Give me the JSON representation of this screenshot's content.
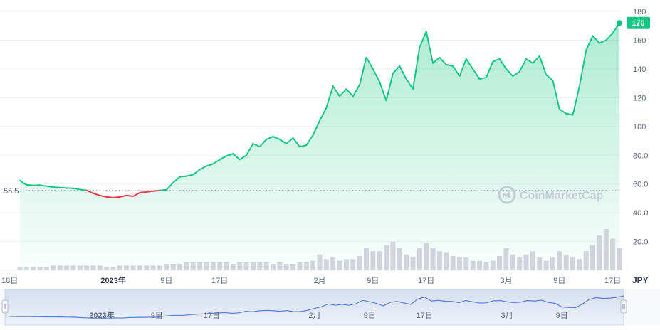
{
  "chart_data": {
    "type": "line",
    "currency": "JPY",
    "watermark": "CoinMarketCap",
    "baseline_label": "55.5",
    "baseline_value": 55.5,
    "current_price_label": "170",
    "current_price": 170,
    "y_ticks": [
      "20.0",
      "40.0",
      "60.0",
      "80.0",
      "100",
      "120",
      "140",
      "160",
      "180"
    ],
    "y_tick_values": [
      20,
      40,
      60,
      80,
      100,
      120,
      140,
      160,
      180
    ],
    "x_ticks": [
      {
        "label": "18日",
        "day": 0,
        "bold": false
      },
      {
        "label": "2023年",
        "day": 14,
        "bold": true
      },
      {
        "label": "9日",
        "day": 22,
        "bold": false
      },
      {
        "label": "17日",
        "day": 30,
        "bold": false
      },
      {
        "label": "2月",
        "day": 45,
        "bold": false
      },
      {
        "label": "9日",
        "day": 53,
        "bold": false
      },
      {
        "label": "17日",
        "day": 61,
        "bold": false
      },
      {
        "label": "3月",
        "day": 73,
        "bold": false
      },
      {
        "label": "9日",
        "day": 81,
        "bold": false
      },
      {
        "label": "17日",
        "day": 89,
        "bold": false
      }
    ],
    "navigator_ticks": [
      {
        "label": "2023年",
        "day": 14,
        "bold": true
      },
      {
        "label": "9日",
        "day": 22,
        "bold": false
      },
      {
        "label": "17日",
        "day": 30,
        "bold": false
      },
      {
        "label": "2月",
        "day": 45,
        "bold": false
      },
      {
        "label": "9日",
        "day": 53,
        "bold": false
      },
      {
        "label": "17日",
        "day": 61,
        "bold": false
      },
      {
        "label": "3月",
        "day": 73,
        "bold": false
      },
      {
        "label": "9日",
        "day": 81,
        "bold": false
      }
    ],
    "x_range_days": [
      0,
      90
    ],
    "y_range": [
      0,
      183
    ],
    "series": [
      {
        "values": [
          [
            0,
            62.5
          ],
          [
            0.5,
            60.5
          ],
          [
            1,
            59.5
          ],
          [
            2,
            59
          ],
          [
            3,
            59.2
          ],
          [
            4,
            58.5
          ],
          [
            5,
            57.8
          ],
          [
            6,
            57.5
          ],
          [
            7,
            57.2
          ],
          [
            8,
            57
          ],
          [
            9,
            56.2
          ],
          [
            10,
            55.5
          ],
          [
            11,
            53.5
          ],
          [
            12,
            52
          ],
          [
            13,
            51
          ],
          [
            14,
            50.5
          ],
          [
            15,
            51
          ],
          [
            16,
            52
          ],
          [
            17,
            51.5
          ],
          [
            18,
            54
          ],
          [
            19,
            54.5
          ],
          [
            20,
            55
          ],
          [
            21,
            55.5
          ],
          [
            22,
            56
          ],
          [
            23,
            61
          ],
          [
            24,
            65
          ],
          [
            25,
            65.5
          ],
          [
            26,
            66.5
          ],
          [
            27,
            70
          ],
          [
            28,
            72.5
          ],
          [
            29,
            74
          ],
          [
            30,
            77
          ],
          [
            31,
            79.5
          ],
          [
            32,
            81
          ],
          [
            33,
            77
          ],
          [
            34,
            80
          ],
          [
            35,
            88
          ],
          [
            36,
            86
          ],
          [
            37,
            91
          ],
          [
            38,
            93
          ],
          [
            39,
            91
          ],
          [
            40,
            88
          ],
          [
            41,
            92
          ],
          [
            42,
            86
          ],
          [
            43,
            87
          ],
          [
            44,
            94
          ],
          [
            45,
            104
          ],
          [
            46,
            113
          ],
          [
            47,
            128
          ],
          [
            48,
            121
          ],
          [
            49,
            126
          ],
          [
            50,
            121
          ],
          [
            51,
            129
          ],
          [
            52,
            148
          ],
          [
            53,
            140
          ],
          [
            54,
            131
          ],
          [
            55,
            118
          ],
          [
            56,
            137
          ],
          [
            57,
            142
          ],
          [
            58,
            133
          ],
          [
            59,
            126
          ],
          [
            60,
            155
          ],
          [
            61,
            166
          ],
          [
            62,
            144
          ],
          [
            63,
            148
          ],
          [
            64,
            143
          ],
          [
            65,
            142
          ],
          [
            66,
            135
          ],
          [
            67,
            147
          ],
          [
            68,
            140
          ],
          [
            69,
            133
          ],
          [
            70,
            134
          ],
          [
            71,
            145
          ],
          [
            72,
            147
          ],
          [
            73,
            140
          ],
          [
            74,
            135
          ],
          [
            75,
            138
          ],
          [
            76,
            147
          ],
          [
            77,
            144
          ],
          [
            78,
            149
          ],
          [
            79,
            136
          ],
          [
            80,
            132
          ],
          [
            81,
            112
          ],
          [
            82,
            109
          ],
          [
            83,
            108
          ],
          [
            84,
            128
          ],
          [
            85,
            153
          ],
          [
            86,
            163
          ],
          [
            87,
            158
          ],
          [
            88,
            160
          ],
          [
            89,
            165
          ],
          [
            90,
            172
          ]
        ]
      }
    ],
    "volume": [
      2,
      2,
      2,
      2,
      2,
      3,
      3,
      3,
      3,
      3,
      3,
      3,
      3,
      2,
      2,
      3,
      3,
      3,
      3,
      3,
      3,
      3,
      4,
      4,
      4,
      5,
      5,
      5,
      5,
      5,
      5,
      5,
      4,
      5,
      5,
      5,
      5,
      5,
      4,
      5,
      4,
      4,
      5,
      5,
      6,
      10,
      7,
      8,
      6,
      7,
      7,
      9,
      14,
      12,
      12,
      16,
      18,
      14,
      10,
      8,
      14,
      17,
      14,
      12,
      11,
      9,
      8,
      8,
      6,
      6,
      5,
      6,
      9,
      14,
      10,
      8,
      10,
      12,
      8,
      6,
      8,
      12,
      10,
      8,
      7,
      12,
      16,
      22,
      26,
      20,
      14
    ]
  }
}
